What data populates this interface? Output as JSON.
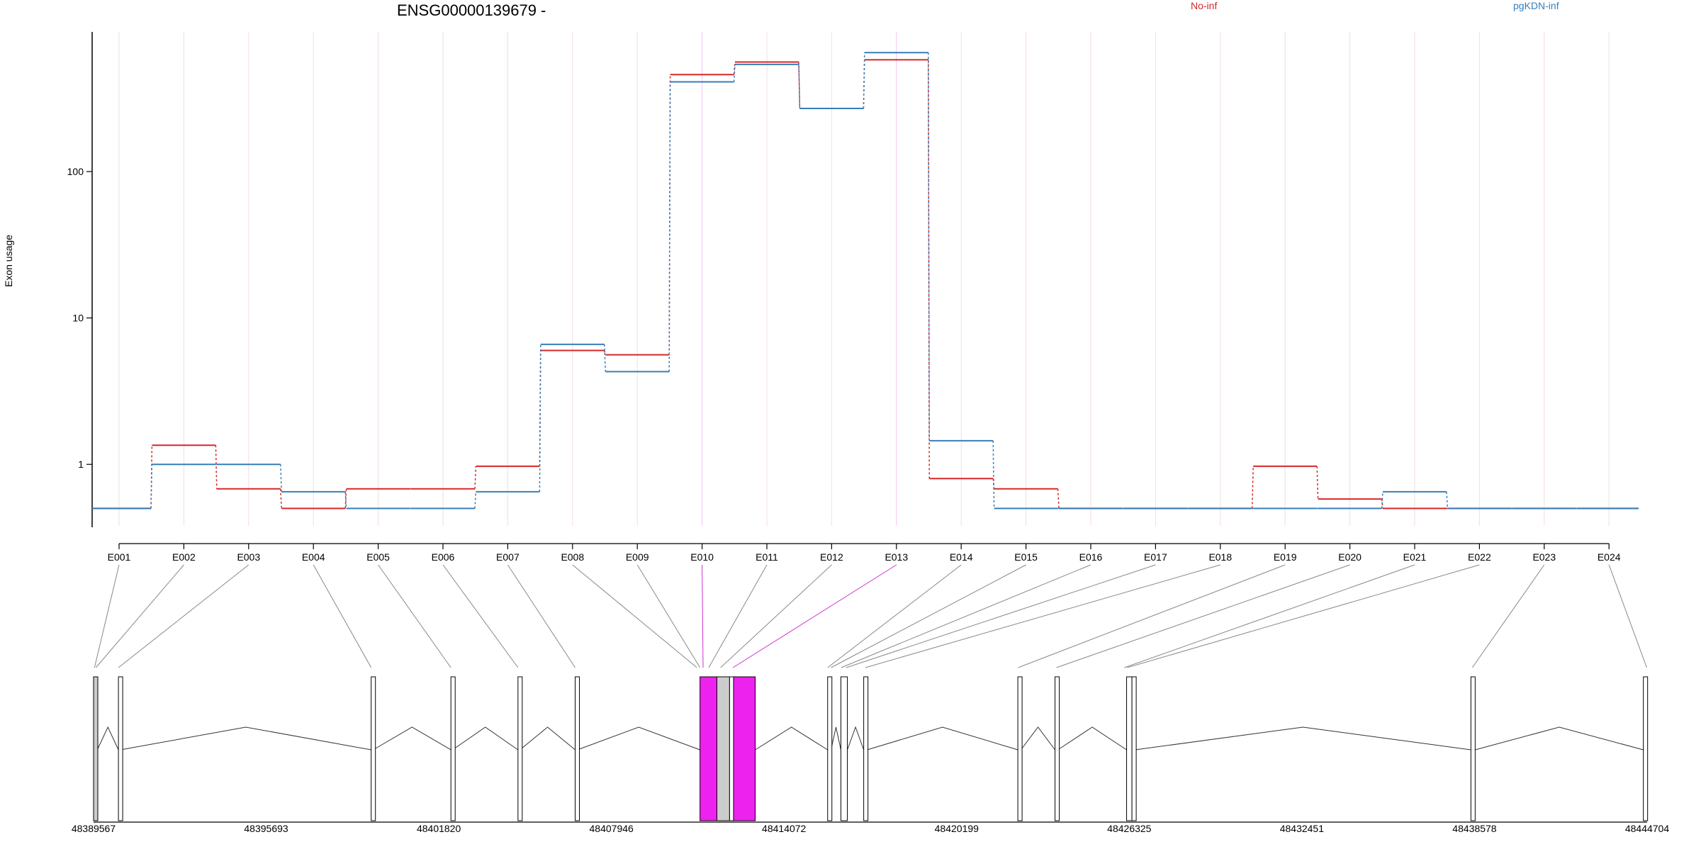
{
  "chart_data": {
    "type": "line",
    "title": "ENSG00000139679 -",
    "ylabel": "Exon usage",
    "yscale": "log",
    "ylim": [
      0.38,
      900
    ],
    "yticks": [
      1,
      10,
      100
    ],
    "ytick_labels": [
      "1",
      "10",
      "100"
    ],
    "categories": [
      "E001",
      "E002",
      "E003",
      "E004",
      "E005",
      "E006",
      "E007",
      "E008",
      "E009",
      "E010",
      "E011",
      "E012",
      "E013",
      "E014",
      "E015",
      "E016",
      "E017",
      "E018",
      "E019",
      "E020",
      "E021",
      "E022",
      "E023",
      "E024"
    ],
    "highlighted": [
      "E010",
      "E013"
    ],
    "series": [
      {
        "name": "No-inf",
        "color": "#d62728",
        "values": [
          0.5,
          1.35,
          0.68,
          0.5,
          0.68,
          0.68,
          0.97,
          6.0,
          5.6,
          460,
          560,
          270,
          580,
          0.8,
          0.68,
          0.5,
          0.5,
          0.5,
          0.97,
          0.58,
          0.5,
          0.5,
          0.5,
          0.5
        ]
      },
      {
        "name": "pgKDN-inf",
        "color": "#377eb8",
        "values": [
          0.5,
          1.0,
          1.0,
          0.65,
          0.5,
          0.5,
          0.65,
          6.6,
          4.3,
          410,
          540,
          270,
          650,
          1.45,
          0.5,
          0.5,
          0.5,
          0.5,
          0.5,
          0.5,
          0.65,
          0.5,
          0.5,
          0.5
        ]
      }
    ],
    "gene_model": {
      "coords": [
        "48389567",
        "48395693",
        "48401820",
        "48407946",
        "48414072",
        "48420199",
        "48426325",
        "48432451",
        "48438578",
        "48444704"
      ],
      "exons": [
        {
          "start": 48389567,
          "end": 48389700,
          "fill": "#cccccc"
        },
        {
          "start": 48390450,
          "end": 48390520,
          "fill": "#ffffff"
        },
        {
          "start": 48399420,
          "end": 48399490,
          "fill": "#ffffff"
        },
        {
          "start": 48402250,
          "end": 48402310,
          "fill": "#ffffff"
        },
        {
          "start": 48404630,
          "end": 48404700,
          "fill": "#ffffff"
        },
        {
          "start": 48406660,
          "end": 48406740,
          "fill": "#ffffff"
        },
        {
          "start": 48411090,
          "end": 48411690,
          "fill": "#ee22ee"
        },
        {
          "start": 48411690,
          "end": 48412140,
          "fill": "#cccccc"
        },
        {
          "start": 48412140,
          "end": 48412280,
          "fill": "#ffffff"
        },
        {
          "start": 48412280,
          "end": 48413050,
          "fill": "#ee22ee"
        },
        {
          "start": 48415620,
          "end": 48415740,
          "fill": "#ffffff"
        },
        {
          "start": 48416090,
          "end": 48416320,
          "fill": "#ffffff"
        },
        {
          "start": 48416900,
          "end": 48417020,
          "fill": "#ffffff"
        },
        {
          "start": 48422370,
          "end": 48422480,
          "fill": "#ffffff"
        },
        {
          "start": 48423690,
          "end": 48423790,
          "fill": "#ffffff"
        },
        {
          "start": 48426230,
          "end": 48426420,
          "fill": "#ffffff"
        },
        {
          "start": 48426420,
          "end": 48426530,
          "fill": "#ffffff"
        },
        {
          "start": 48438450,
          "end": 48438600,
          "fill": "#ffffff"
        },
        {
          "start": 48444570,
          "end": 48444704,
          "fill": "#ffffff"
        }
      ],
      "exon_map": [
        48389567,
        48389650,
        48390450,
        48399420,
        48402250,
        48404630,
        48406660,
        48410980,
        48411180,
        48411200,
        48411400,
        48411820,
        48412260,
        48415620,
        48415740,
        48416100,
        48416280,
        48416960,
        48422380,
        48423740,
        48426150,
        48426250,
        48438500,
        48444690
      ],
      "exon_map_lower": [
        48389600,
        48389650,
        48390450,
        48399420,
        48402250,
        48404630,
        48406660,
        48410980,
        48411090,
        48411200,
        48411400,
        48411820,
        48412260,
        48415620,
        48415740,
        48416100,
        48416280,
        48416960,
        48422380,
        48423740,
        48426150,
        48426250,
        48438500,
        48444690
      ]
    }
  }
}
